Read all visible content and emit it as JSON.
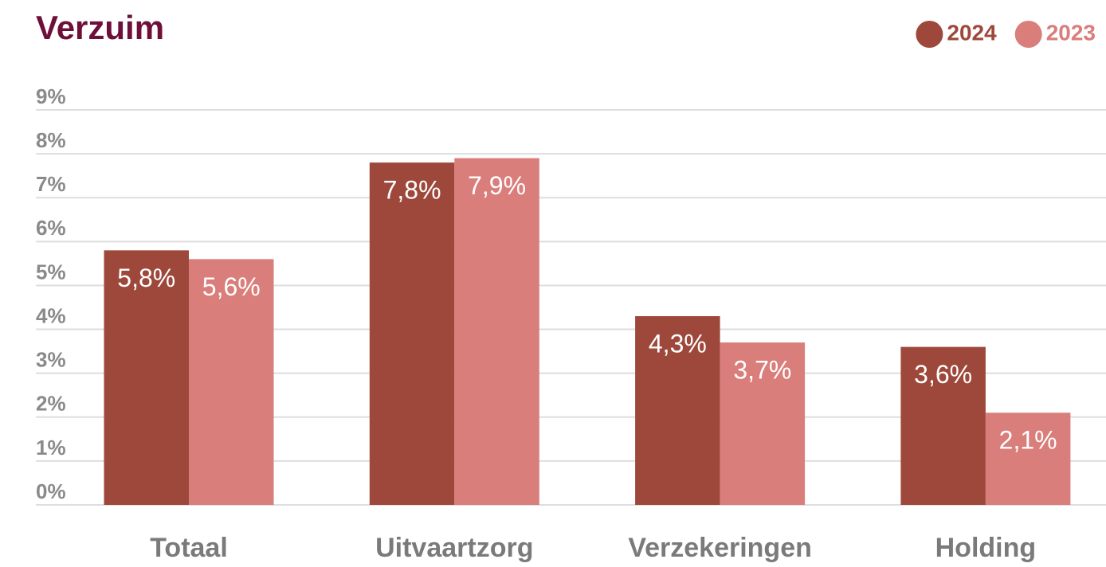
{
  "chart_data": {
    "type": "bar",
    "title": "Verzuim",
    "categories": [
      "Totaal",
      "Uitvaartzorg",
      "Verzekeringen",
      "Holding"
    ],
    "series": [
      {
        "name": "2024",
        "color": "#9e483b",
        "values": [
          5.8,
          7.8,
          4.3,
          3.6
        ],
        "value_labels": [
          "5,8%",
          "7,8%",
          "4,3%",
          "3,6%"
        ]
      },
      {
        "name": "2023",
        "color": "#d97e7a",
        "values": [
          5.6,
          7.9,
          3.7,
          2.1
        ],
        "value_labels": [
          "5,6%",
          "7,9%",
          "3,7%",
          "2,1%"
        ]
      }
    ],
    "ylim": [
      0,
      9
    ],
    "yticks": [
      {
        "value": 0,
        "label": "0%"
      },
      {
        "value": 1,
        "label": "1%"
      },
      {
        "value": 2,
        "label": "2%"
      },
      {
        "value": 3,
        "label": "3%"
      },
      {
        "value": 4,
        "label": "4%"
      },
      {
        "value": 5,
        "label": "5%"
      },
      {
        "value": 6,
        "label": "6%"
      },
      {
        "value": 7,
        "label": "7%"
      },
      {
        "value": 8,
        "label": "8%"
      },
      {
        "value": 9,
        "label": "9%"
      }
    ],
    "grid": true,
    "legend": "top-right"
  }
}
